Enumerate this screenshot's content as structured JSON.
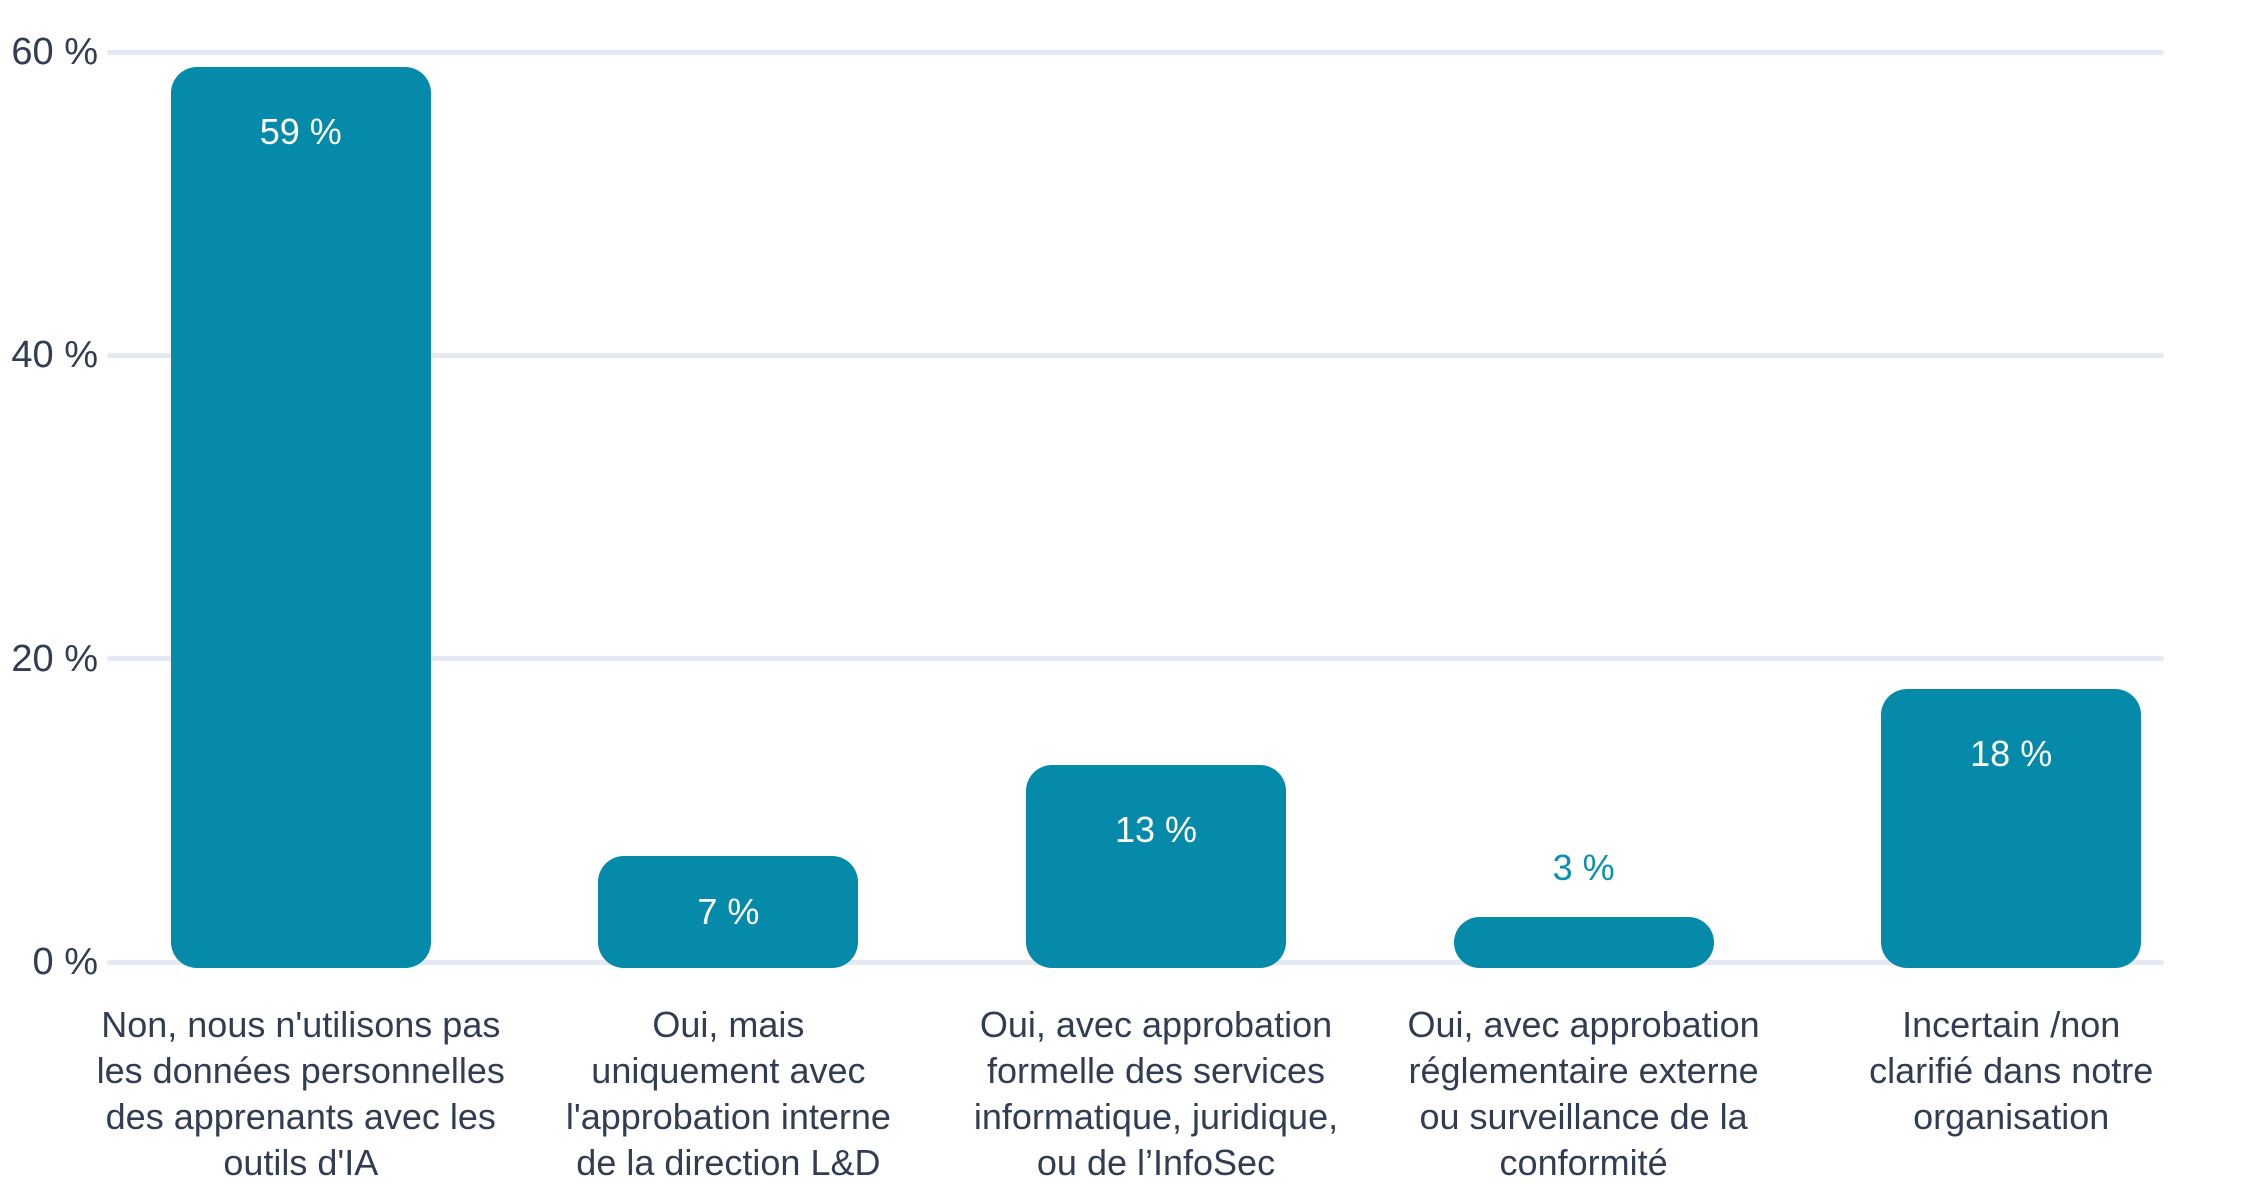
{
  "chart_data": {
    "type": "bar",
    "categories": [
      "Non, nous n'utilisons pas\nles données personnelles\ndes apprenants avec les\noutils d'IA",
      "Oui, mais\nuniquement avec\nl'approbation interne\nde la direction L&D",
      "Oui, avec approbation\nformelle des services\ninformatique, juridique,\nou de l’InfoSec",
      "Oui, avec approbation\nréglementaire externe\nou surveillance de la\nconformité",
      "Incertain /non\nclarifié dans notre\norganisation"
    ],
    "values": [
      59,
      7,
      13,
      3,
      18
    ],
    "bar_labels": [
      "59 %",
      "7 %",
      "13 %",
      "3 %",
      "18 %"
    ],
    "label_placement": [
      "inside-top",
      "inside-center",
      "inside-top",
      "above",
      "inside-top"
    ],
    "y_ticks": [
      {
        "label": "0 %",
        "value": 0
      },
      {
        "label": "20 %",
        "value": 20
      },
      {
        "label": "40 %",
        "value": 40
      },
      {
        "label": "60 %",
        "value": 60
      }
    ],
    "ylim": [
      0,
      60
    ],
    "xlabel": "",
    "ylabel": "",
    "grid": true,
    "legend": false,
    "colors": {
      "bar": "#058AA9",
      "bar_label_inside": "#FFFFFF",
      "bar_label_outside": "#0A90B0",
      "axis_text": "#323D53",
      "gridline": "#E4E9F2",
      "background": "#FFFFFF"
    }
  }
}
